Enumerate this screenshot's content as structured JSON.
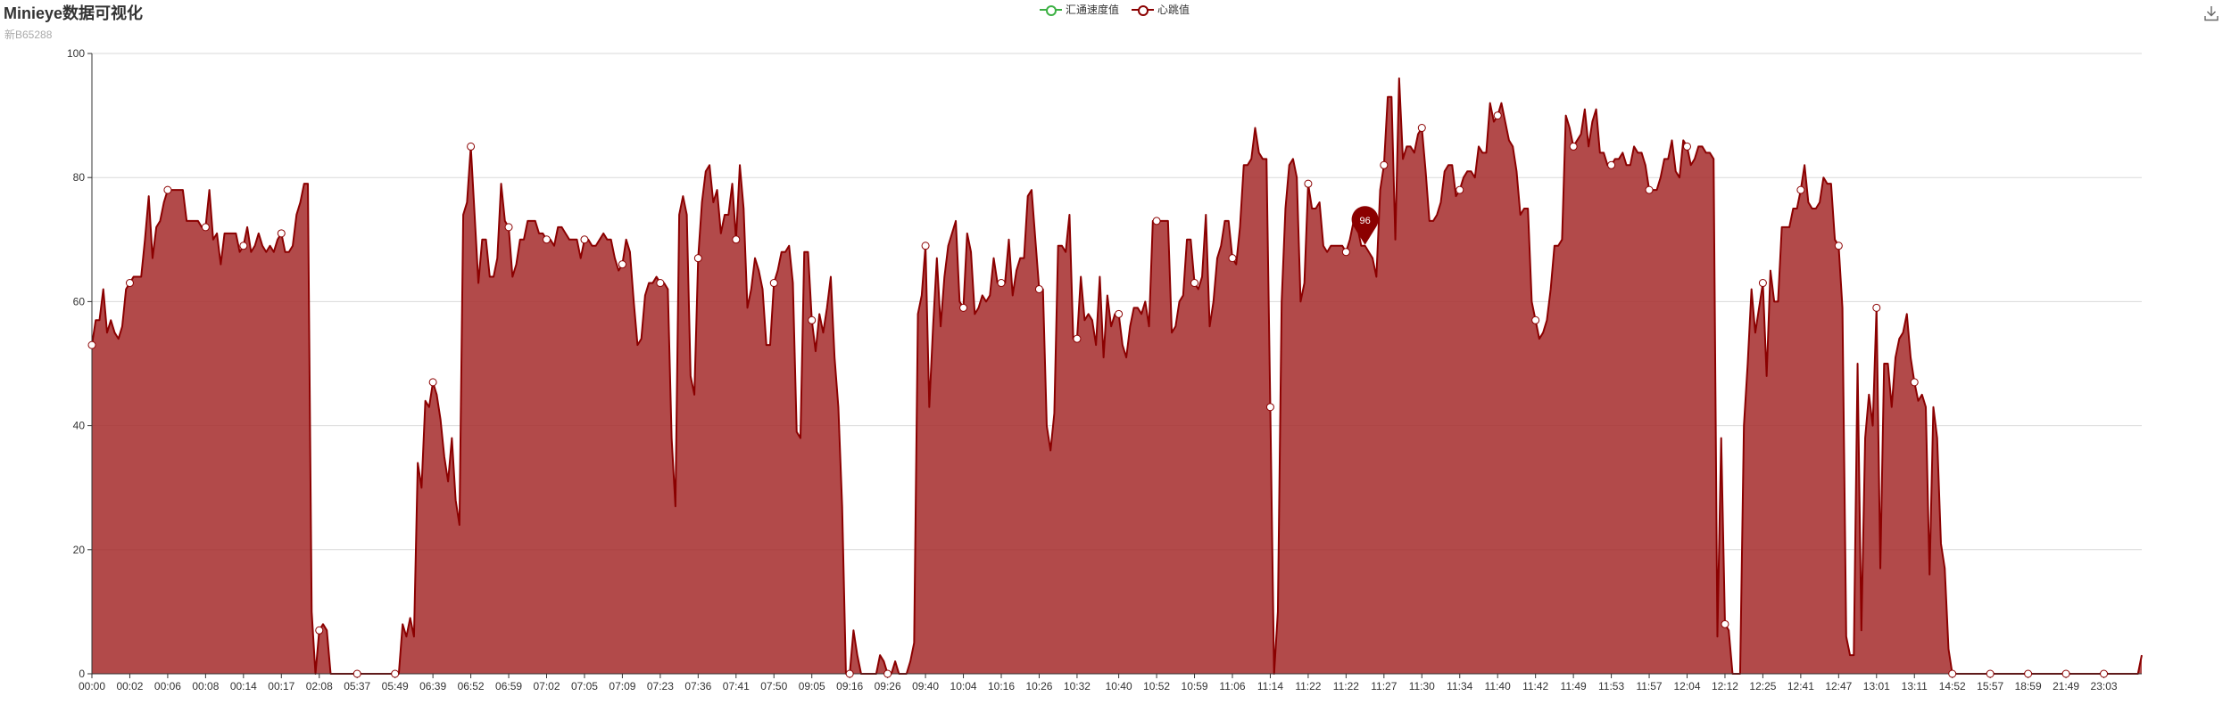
{
  "title": "Minieye数据可视化",
  "subtitle": "新B65288",
  "legend": [
    {
      "name": "汇通速度值",
      "color": "#3cb043"
    },
    {
      "name": "心跳值",
      "color": "#8b0000"
    }
  ],
  "toolbox": {
    "icon": "download-icon"
  },
  "chart_data": {
    "type": "area",
    "ylim": [
      0,
      100
    ],
    "yticks": [
      0,
      20,
      40,
      60,
      80,
      100
    ],
    "grid": true,
    "legend_placement": "top-center",
    "x_tick_labels": [
      "00:00",
      "00:02",
      "00:06",
      "00:08",
      "00:14",
      "00:17",
      "02:08",
      "05:37",
      "05:49",
      "06:39",
      "06:52",
      "06:59",
      "07:02",
      "07:05",
      "07:09",
      "07:23",
      "07:36",
      "07:41",
      "07:50",
      "09:05",
      "09:16",
      "09:26",
      "09:40",
      "10:04",
      "10:16",
      "10:26",
      "10:32",
      "10:40",
      "10:52",
      "10:59",
      "11:06",
      "11:14",
      "11:22",
      "11:22",
      "11:27",
      "11:30",
      "11:34",
      "11:40",
      "11:42",
      "11:49",
      "11:53",
      "11:57",
      "12:04",
      "12:12",
      "12:25",
      "12:41",
      "12:47",
      "13:01",
      "13:11",
      "14:52",
      "15:57",
      "18:59",
      "21:49",
      "23:03"
    ],
    "series": [
      {
        "name": "心跳值",
        "color": "#8b0000",
        "fill": "#a52a2a",
        "max_marker": {
          "value": 96,
          "index": 336
        },
        "values": [
          53,
          57,
          57,
          62,
          55,
          57,
          55,
          54,
          56,
          62,
          63,
          64,
          64,
          64,
          70,
          77,
          67,
          72,
          73,
          76,
          78,
          78,
          78,
          78,
          78,
          73,
          73,
          73,
          73,
          72,
          72,
          78,
          70,
          71,
          66,
          71,
          71,
          71,
          71,
          68,
          69,
          72,
          68,
          69,
          71,
          69,
          68,
          69,
          68,
          70,
          71,
          68,
          68,
          69,
          74,
          76,
          79,
          79,
          10,
          0,
          7,
          8,
          7,
          0,
          0,
          0,
          0,
          0,
          0,
          0,
          0,
          0,
          0,
          0,
          0,
          0,
          0,
          0,
          0,
          0,
          0,
          0,
          8,
          6,
          9,
          6,
          34,
          30,
          44,
          43,
          47,
          45,
          41,
          35,
          31,
          38,
          28,
          24,
          74,
          76,
          85,
          74,
          63,
          70,
          70,
          64,
          64,
          67,
          79,
          73,
          72,
          64,
          66,
          70,
          70,
          73,
          73,
          73,
          71,
          71,
          70,
          70,
          69,
          72,
          72,
          71,
          70,
          70,
          70,
          67,
          70,
          70,
          69,
          69,
          70,
          71,
          70,
          70,
          67,
          65,
          66,
          70,
          68,
          60,
          53,
          54,
          61,
          63,
          63,
          64,
          63,
          63,
          62,
          38,
          27,
          74,
          77,
          74,
          48,
          45,
          67,
          76,
          81,
          82,
          76,
          78,
          71,
          74,
          74,
          79,
          70,
          82,
          75,
          59,
          62,
          67,
          65,
          62,
          53,
          53,
          63,
          65,
          68,
          68,
          69,
          63,
          39,
          38,
          68,
          68,
          57,
          52,
          58,
          55,
          59,
          64,
          51,
          43,
          27,
          0,
          0,
          7,
          3,
          0,
          0,
          0,
          0,
          0,
          3,
          2,
          0,
          0,
          2,
          0,
          0,
          0,
          2,
          5,
          58,
          61,
          69,
          43,
          56,
          67,
          56,
          64,
          69,
          71,
          73,
          60,
          59,
          71,
          68,
          58,
          59,
          61,
          60,
          61,
          67,
          63,
          63,
          63,
          70,
          61,
          65,
          67,
          67,
          77,
          78,
          70,
          62,
          62,
          40,
          36,
          42,
          69,
          69,
          68,
          74,
          54,
          54,
          64,
          57,
          58,
          57,
          53,
          64,
          51,
          61,
          56,
          58,
          58,
          53,
          51,
          56,
          59,
          59,
          58,
          60,
          56,
          73,
          73,
          73,
          73,
          73,
          55,
          56,
          60,
          61,
          70,
          70,
          63,
          62,
          64,
          74,
          56,
          60,
          67,
          69,
          73,
          73,
          67,
          66,
          72,
          82,
          82,
          83,
          88,
          84,
          83,
          83,
          43,
          0,
          10,
          60,
          75,
          82,
          83,
          80,
          60,
          63,
          79,
          75,
          75,
          76,
          69,
          68,
          69,
          69,
          69,
          69,
          68,
          70,
          73,
          72,
          69,
          69,
          68,
          67,
          64,
          78,
          82,
          93,
          93,
          70,
          96,
          83,
          85,
          85,
          84,
          87,
          88,
          81,
          73,
          73,
          74,
          76,
          81,
          82,
          82,
          77,
          78,
          80,
          81,
          81,
          80,
          85,
          84,
          84,
          92,
          89,
          90,
          92,
          89,
          86,
          85,
          81,
          74,
          75,
          75,
          60,
          57,
          54,
          55,
          57,
          62,
          69,
          69,
          70,
          90,
          88,
          85,
          86,
          87,
          91,
          85,
          89,
          91,
          84,
          84,
          82,
          82,
          83,
          83,
          84,
          82,
          82,
          85,
          84,
          84,
          82,
          78,
          78,
          78,
          80,
          83,
          83,
          86,
          81,
          80,
          86,
          85,
          82,
          83,
          85,
          85,
          84,
          84,
          83,
          6,
          38,
          8,
          7,
          0,
          0,
          0,
          40,
          50,
          62,
          55,
          59,
          63,
          48,
          65,
          60,
          60,
          72,
          72,
          72,
          75,
          75,
          78,
          82,
          76,
          75,
          75,
          76,
          80,
          79,
          79,
          70,
          69,
          59,
          6,
          3,
          3,
          50,
          7,
          38,
          45,
          40,
          59,
          17,
          50,
          50,
          43,
          51,
          54,
          55,
          58,
          51,
          47,
          44,
          45,
          43,
          16,
          43,
          38,
          21,
          17,
          4,
          0,
          0,
          0,
          0,
          0,
          0,
          0,
          0,
          0,
          0,
          0,
          0,
          0,
          0,
          0,
          0,
          0,
          0,
          0,
          0,
          0,
          0,
          0,
          0,
          0,
          0,
          0,
          0,
          0,
          0,
          0,
          0,
          0,
          0,
          0,
          0,
          0,
          0,
          0,
          0,
          0,
          0,
          0,
          0,
          0,
          0,
          0,
          0,
          0,
          0,
          3
        ]
      },
      {
        "name": "汇通速度值",
        "color": "#3cb043",
        "values": []
      }
    ]
  }
}
